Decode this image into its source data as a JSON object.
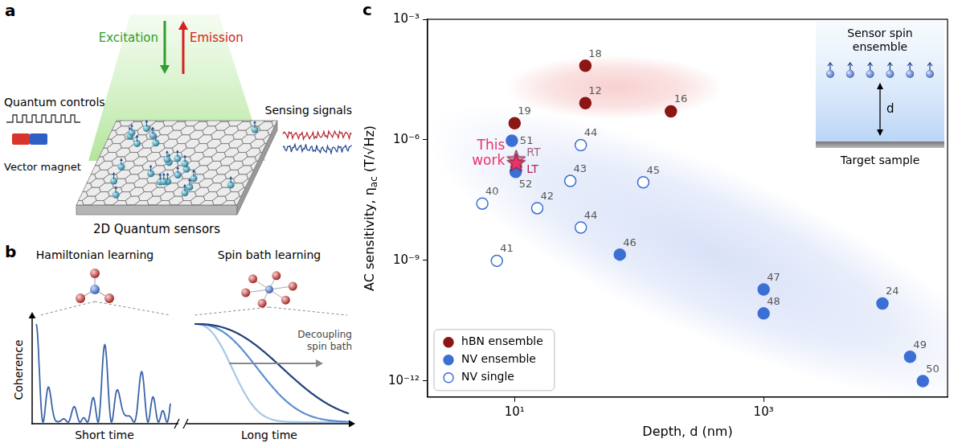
{
  "panel_a": {
    "label": "a",
    "excitation": "Excitation",
    "emission": "Emission",
    "controls": "Quantum controls",
    "magnet": "Vector magnet",
    "signals": "Sensing signals",
    "caption": "2D Quantum sensors"
  },
  "panel_b": {
    "label": "b",
    "left_title": "Hamiltonian learning",
    "right_title": "Spin bath learning",
    "ylabel": "Coherence",
    "left_xlabel": "Short time",
    "right_xlabel": "Long time",
    "arrow_label": "Decoupling spin bath"
  },
  "chart_data": {
    "type": "scatter",
    "label": "c",
    "xlabel": "Depth, d (nm)",
    "ylabel": {
      "text": "AC sensitivity, η",
      "subscript": "ac",
      "suffix": " (T/√Hz)"
    },
    "log": true,
    "xlim": [
      2,
      30000
    ],
    "xticks": [
      {
        "value": 10,
        "label": "10¹"
      },
      {
        "value": 1000,
        "label": "10³"
      }
    ],
    "ylim": [
      4e-13,
      0.001
    ],
    "yticks": [
      {
        "value": 0.001,
        "label": "10⁻³"
      },
      {
        "value": 1e-06,
        "label": "10⁻⁶"
      },
      {
        "value": 1e-09,
        "label": "10⁻⁹"
      },
      {
        "value": 1e-12,
        "label": "10⁻¹²"
      }
    ],
    "grid": false,
    "legend": "lower left",
    "series": [
      {
        "name": "hBN ensemble",
        "color": "#8c1515",
        "marker": "filled",
        "x": [
          37,
          37,
          180,
          10
        ],
        "values": [
          7e-05,
          8.2e-06,
          5.1e-06,
          2.6e-06
        ],
        "point_labels": [
          "18",
          "12",
          "16",
          "19"
        ]
      },
      {
        "name": "NV ensemble",
        "color": "#3b6fd4",
        "marker": "filled",
        "x": [
          9.5,
          10.2,
          70,
          1000,
          1000,
          9000,
          15000,
          19000
        ],
        "values": [
          9.5e-07,
          1.6e-07,
          1.4e-09,
          1.9e-10,
          4.8e-11,
          8.5e-11,
          4e-12,
          1e-12
        ],
        "point_labels": [
          "51",
          "52",
          "46",
          "47",
          "48",
          "24",
          "49",
          "50"
        ]
      },
      {
        "name": "NV single",
        "color": "#3b6fd4",
        "marker": "hollow",
        "x": [
          5.5,
          34,
          28,
          108,
          15.2,
          34,
          7.2
        ],
        "values": [
          2.6e-08,
          7.4e-07,
          9.5e-08,
          8.8e-08,
          2e-08,
          6.6e-09,
          9.8e-10
        ],
        "point_labels": [
          "40",
          "44",
          "43",
          "45",
          "42",
          "44",
          "41"
        ]
      }
    ],
    "highlight": {
      "label": "This work",
      "color": "#e8336b",
      "marker": "star",
      "points": [
        {
          "name": "RT",
          "x": 10.3,
          "value": 3.2e-07,
          "color": "#d88aa8"
        },
        {
          "name": "LT",
          "x": 10.3,
          "value": 2.6e-07,
          "color": "#e8336b"
        }
      ]
    },
    "inset": {
      "top": "Sensor spin ensemble",
      "distance": "d",
      "bottom": "Target sample"
    }
  }
}
